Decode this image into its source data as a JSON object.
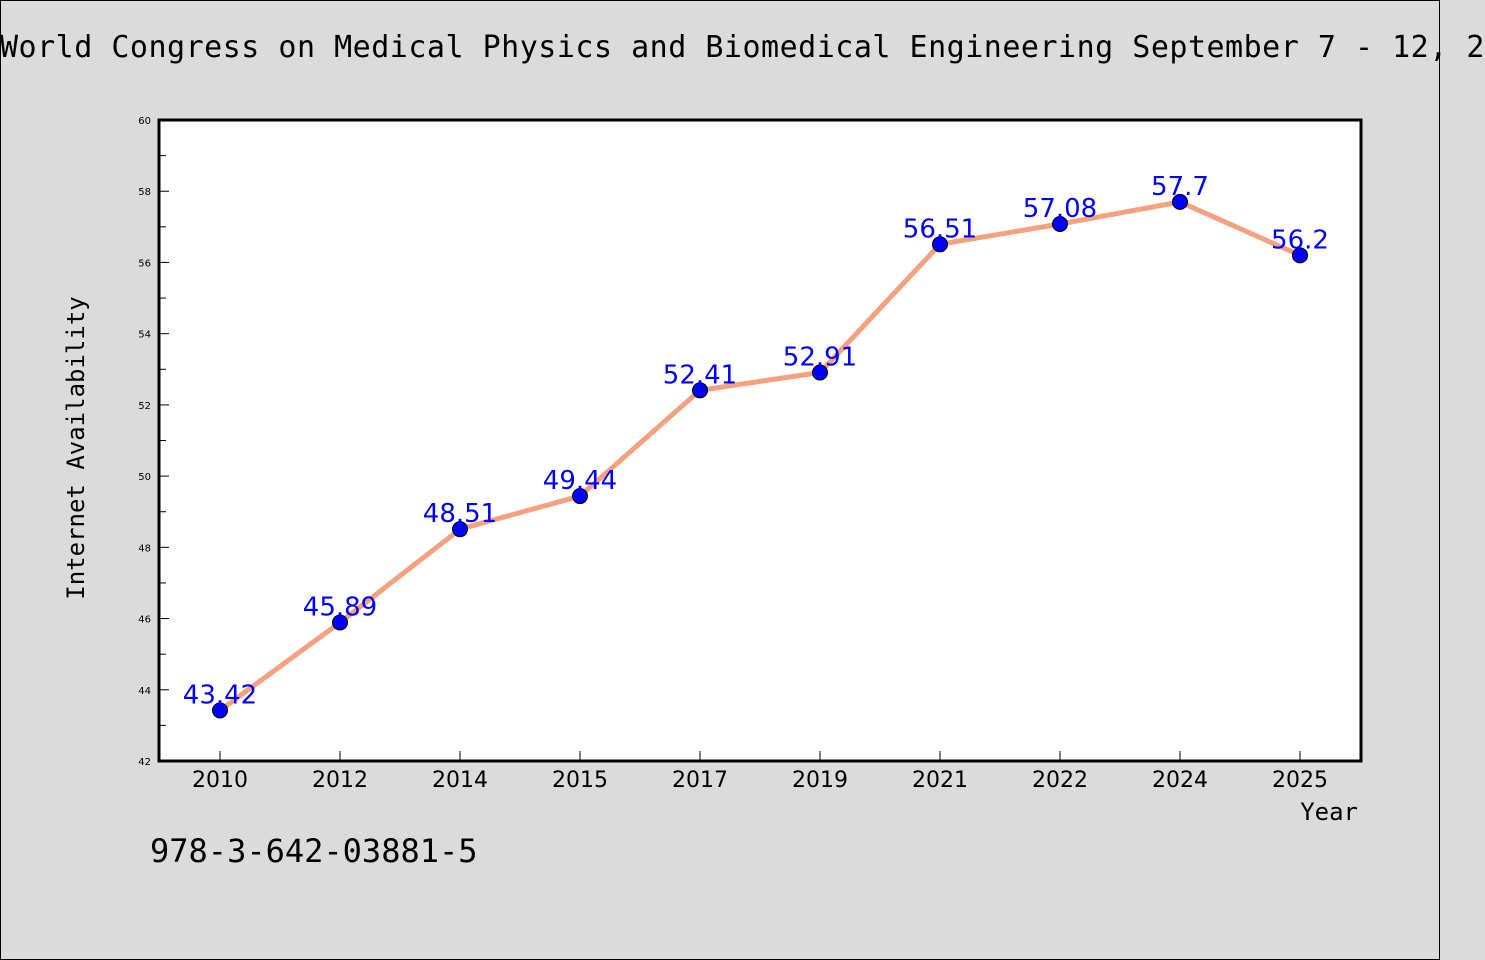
{
  "chart_data": {
    "type": "line",
    "title": "World Congress on Medical Physics and Biomedical Engineering September 7 - 12, 2",
    "xlabel": "Year",
    "ylabel": "Internet Availability",
    "categories": [
      "2010",
      "2012",
      "2014",
      "2015",
      "2017",
      "2019",
      "2021",
      "2022",
      "2024",
      "2025"
    ],
    "series": [
      {
        "values": [
          43.42,
          45.89,
          48.51,
          49.44,
          52.41,
          52.91,
          56.51,
          57.08,
          57.7,
          56.2
        ],
        "labels": [
          "43.42",
          "45.89",
          "48.51",
          "49.44",
          "52.41",
          "52.91",
          "56.51",
          "57.08",
          "57.7",
          "56.2"
        ]
      }
    ],
    "ylim": [
      42,
      60
    ],
    "yticks": [
      "42",
      "44",
      "46",
      "48",
      "50",
      "52",
      "54",
      "56",
      "58",
      "60"
    ],
    "grid": false,
    "line_color": "#f5a07e",
    "marker_color": "#0000ff",
    "label_color": "#0000ff"
  },
  "footer": {
    "isbn": "978-3-642-03881-5"
  }
}
